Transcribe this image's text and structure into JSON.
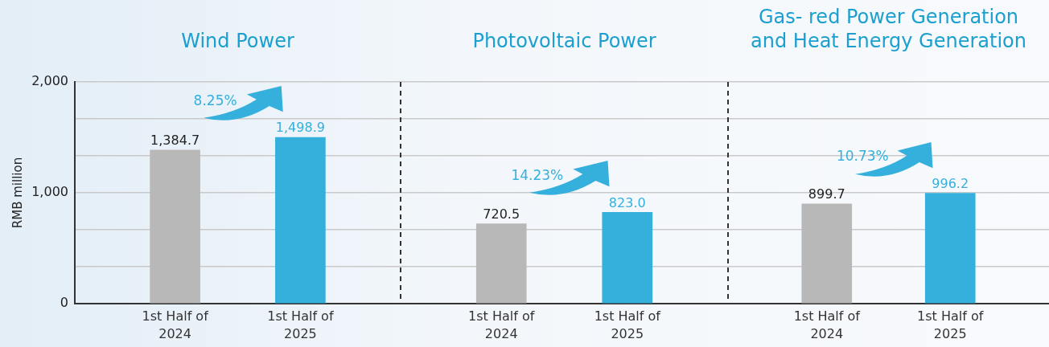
{
  "chart_data": [
    {
      "type": "bar",
      "title": "Wind Power",
      "ylabel": "RMB million",
      "categories": [
        "1st Half of 2024",
        "1st Half of 2025"
      ],
      "values": [
        1384.7,
        1498.9
      ],
      "colors": [
        "#b8b8b8",
        "#35b0dc"
      ],
      "value_labels": [
        "1,384.7",
        "1,498.9"
      ],
      "annotations": [
        "8.25%"
      ],
      "ylim": [
        0,
        2000
      ],
      "yticks": [
        0,
        {
          "value": 333.3,
          "label": null
        },
        {
          "value": 666.7,
          "label": null
        },
        {
          "value": 1000,
          "label": "1,000"
        },
        {
          "value": 1333.3,
          "label": null
        },
        {
          "value": 1666.7,
          "label": null
        },
        {
          "value": 2000,
          "label": "2,000"
        }
      ],
      "grid": "y"
    },
    {
      "type": "bar",
      "title": "Photovoltaic Power",
      "categories": [
        "1st Half of 2024",
        "1st Half of 2025"
      ],
      "values": [
        720.5,
        823.0
      ],
      "colors": [
        "#b8b8b8",
        "#35b0dc"
      ],
      "value_labels": [
        "720.5",
        "823.0"
      ],
      "annotations": [
        "14.23%"
      ],
      "ylim": [
        0,
        2000
      ],
      "yticks": [
        0,
        333.3,
        666.7,
        1000,
        1333.3,
        1666.7,
        2000
      ],
      "grid": "y",
      "tick_labels": "x"
    },
    {
      "type": "bar",
      "title": "Gas- red Power Generation and Heat Energy Generation",
      "categories": [
        "1st Half of 2024",
        "1st Half of 2025"
      ],
      "values": [
        899.7,
        996.2
      ],
      "colors": [
        "#b8b8b8",
        "#35b0dc"
      ],
      "value_labels": [
        "899.7",
        "996.2"
      ],
      "annotations": [
        "10.73%"
      ],
      "ylim": [
        0,
        2000
      ],
      "yticks": [
        0,
        333.3,
        666.7,
        1000,
        1333.3,
        1666.7,
        2000
      ],
      "grid": "y",
      "tick_labels": "x"
    }
  ]
}
